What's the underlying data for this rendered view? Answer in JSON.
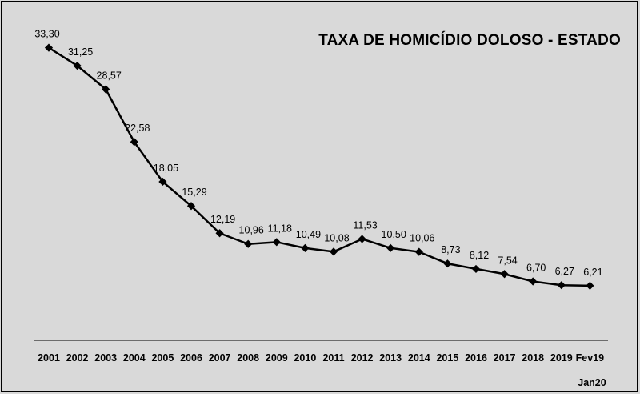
{
  "chart_data": {
    "type": "line",
    "title": "TAXA DE HOMICÍDIO DOLOSO - ESTADO",
    "note": "Jan20",
    "categories": [
      "2001",
      "2002",
      "2003",
      "2004",
      "2005",
      "2006",
      "2007",
      "2008",
      "2009",
      "2010",
      "2011",
      "2012",
      "2013",
      "2014",
      "2015",
      "2016",
      "2017",
      "2018",
      "2019",
      "Fev19"
    ],
    "values": [
      33.3,
      31.25,
      28.57,
      22.58,
      18.05,
      15.29,
      12.19,
      10.96,
      11.18,
      10.49,
      10.08,
      11.53,
      10.5,
      10.06,
      8.73,
      8.12,
      7.54,
      6.7,
      6.27,
      6.21
    ],
    "data_labels": [
      "33,30",
      "31,25",
      "28,57",
      "22,58",
      "18,05",
      "15,29",
      "12,19",
      "10,96",
      "11,18",
      "10,49",
      "10,08",
      "11,53",
      "10,50",
      "10,06",
      "8,73",
      "8,12",
      "7,54",
      "6,70",
      "6,27",
      "6,21"
    ],
    "ylim": [
      0,
      36
    ],
    "grid": false,
    "line_color": "#000000",
    "background_color": "#d9d9d9"
  }
}
